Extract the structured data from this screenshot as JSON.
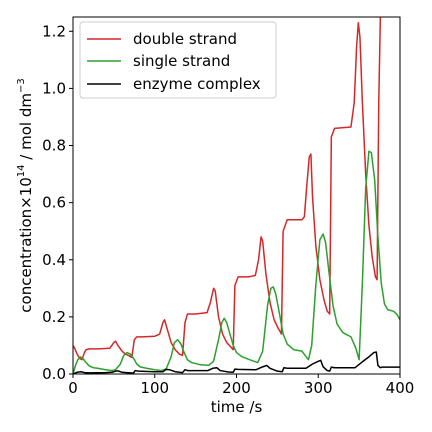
{
  "chart_data": {
    "type": "line",
    "title": "",
    "xlabel": "time /s",
    "ylabel": {
      "base": "concentration×10",
      "exponent": "14",
      "unit": " / mol dm",
      "unit_exponent": "−3"
    },
    "xlim": [
      0,
      400
    ],
    "ylim": [
      0,
      1.25
    ],
    "x_ticks": [
      0,
      100,
      200,
      300,
      400
    ],
    "y_ticks": [
      0.0,
      0.2,
      0.4,
      0.6,
      0.8,
      1.0,
      1.2
    ],
    "x_tick_labels": [
      "0",
      "100",
      "200",
      "300",
      "400"
    ],
    "y_tick_labels": [
      "0.0",
      "0.2",
      "0.4",
      "0.6",
      "0.8",
      "1.0",
      "1.2"
    ],
    "grid": false,
    "legend_position": "top-left",
    "series": [
      {
        "name": "double strand",
        "color": "#d62728",
        "points": [
          [
            0,
            0.1
          ],
          [
            2,
            0.09
          ],
          [
            5,
            0.07
          ],
          [
            8,
            0.055
          ],
          [
            11,
            0.05
          ],
          [
            14,
            0.075
          ],
          [
            16,
            0.085
          ],
          [
            20,
            0.088
          ],
          [
            30,
            0.088
          ],
          [
            45,
            0.09
          ],
          [
            50,
            0.11
          ],
          [
            52,
            0.115
          ],
          [
            55,
            0.1
          ],
          [
            60,
            0.08
          ],
          [
            64,
            0.07
          ],
          [
            68,
            0.065
          ],
          [
            72,
            0.058
          ],
          [
            75,
            0.12
          ],
          [
            78,
            0.13
          ],
          [
            85,
            0.13
          ],
          [
            100,
            0.132
          ],
          [
            106,
            0.14
          ],
          [
            110,
            0.18
          ],
          [
            112,
            0.19
          ],
          [
            115,
            0.16
          ],
          [
            120,
            0.11
          ],
          [
            125,
            0.085
          ],
          [
            130,
            0.07
          ],
          [
            134,
            0.065
          ],
          [
            137,
            0.18
          ],
          [
            140,
            0.21
          ],
          [
            150,
            0.21
          ],
          [
            164,
            0.215
          ],
          [
            168,
            0.25
          ],
          [
            172,
            0.3
          ],
          [
            174,
            0.29
          ],
          [
            178,
            0.2
          ],
          [
            183,
            0.14
          ],
          [
            188,
            0.11
          ],
          [
            193,
            0.095
          ],
          [
            196,
            0.085
          ],
          [
            198,
            0.31
          ],
          [
            202,
            0.34
          ],
          [
            215,
            0.34
          ],
          [
            223,
            0.345
          ],
          [
            227,
            0.4
          ],
          [
            230,
            0.48
          ],
          [
            232,
            0.465
          ],
          [
            236,
            0.35
          ],
          [
            241,
            0.25
          ],
          [
            246,
            0.19
          ],
          [
            251,
            0.16
          ],
          [
            255,
            0.14
          ],
          [
            257,
            0.5
          ],
          [
            262,
            0.54
          ],
          [
            280,
            0.54
          ],
          [
            283,
            0.55
          ],
          [
            286,
            0.66
          ],
          [
            289,
            0.76
          ],
          [
            291,
            0.77
          ],
          [
            293,
            0.62
          ],
          [
            297,
            0.45
          ],
          [
            302,
            0.33
          ],
          [
            307,
            0.26
          ],
          [
            311,
            0.22
          ],
          [
            314,
            0.21
          ],
          [
            316,
            0.83
          ],
          [
            320,
            0.86
          ],
          [
            340,
            0.865
          ],
          [
            344,
            0.95
          ],
          [
            347,
            1.15
          ],
          [
            349,
            1.23
          ],
          [
            351,
            1.18
          ],
          [
            354,
            0.95
          ],
          [
            358,
            0.7
          ],
          [
            362,
            0.52
          ],
          [
            366,
            0.41
          ],
          [
            370,
            0.34
          ],
          [
            372,
            0.33
          ],
          [
            374,
            0.95
          ],
          [
            376,
            1.25
          ]
        ]
      },
      {
        "name": "single strand",
        "color": "#2ca02c",
        "points": [
          [
            0,
            0.0
          ],
          [
            3,
            0.03
          ],
          [
            6,
            0.05
          ],
          [
            9,
            0.06
          ],
          [
            12,
            0.055
          ],
          [
            16,
            0.04
          ],
          [
            20,
            0.028
          ],
          [
            25,
            0.022
          ],
          [
            30,
            0.02
          ],
          [
            40,
            0.015
          ],
          [
            48,
            0.012
          ],
          [
            52,
            0.015
          ],
          [
            58,
            0.035
          ],
          [
            62,
            0.065
          ],
          [
            66,
            0.075
          ],
          [
            70,
            0.07
          ],
          [
            74,
            0.055
          ],
          [
            78,
            0.035
          ],
          [
            82,
            0.025
          ],
          [
            90,
            0.02
          ],
          [
            100,
            0.015
          ],
          [
            108,
            0.012
          ],
          [
            114,
            0.018
          ],
          [
            120,
            0.06
          ],
          [
            124,
            0.11
          ],
          [
            128,
            0.12
          ],
          [
            132,
            0.105
          ],
          [
            136,
            0.075
          ],
          [
            140,
            0.05
          ],
          [
            145,
            0.04
          ],
          [
            155,
            0.033
          ],
          [
            166,
            0.03
          ],
          [
            172,
            0.045
          ],
          [
            178,
            0.12
          ],
          [
            182,
            0.18
          ],
          [
            185,
            0.195
          ],
          [
            188,
            0.18
          ],
          [
            192,
            0.14
          ],
          [
            196,
            0.1
          ],
          [
            200,
            0.075
          ],
          [
            207,
            0.06
          ],
          [
            216,
            0.05
          ],
          [
            226,
            0.04
          ],
          [
            232,
            0.08
          ],
          [
            238,
            0.24
          ],
          [
            242,
            0.3
          ],
          [
            245,
            0.305
          ],
          [
            248,
            0.28
          ],
          [
            252,
            0.22
          ],
          [
            257,
            0.14
          ],
          [
            262,
            0.105
          ],
          [
            270,
            0.085
          ],
          [
            280,
            0.08
          ],
          [
            288,
            0.05
          ],
          [
            292,
            0.1
          ],
          [
            297,
            0.31
          ],
          [
            302,
            0.47
          ],
          [
            306,
            0.49
          ],
          [
            309,
            0.46
          ],
          [
            313,
            0.36
          ],
          [
            318,
            0.24
          ],
          [
            323,
            0.175
          ],
          [
            330,
            0.145
          ],
          [
            340,
            0.13
          ],
          [
            346,
            0.09
          ],
          [
            350,
            0.05
          ],
          [
            354,
            0.32
          ],
          [
            358,
            0.65
          ],
          [
            362,
            0.78
          ],
          [
            365,
            0.775
          ],
          [
            369,
            0.68
          ],
          [
            373,
            0.48
          ],
          [
            377,
            0.32
          ],
          [
            381,
            0.245
          ],
          [
            385,
            0.225
          ],
          [
            392,
            0.22
          ],
          [
            396,
            0.21
          ],
          [
            400,
            0.19
          ]
        ]
      },
      {
        "name": "enzyme complex",
        "color": "#000000",
        "points": [
          [
            0,
            0.0
          ],
          [
            5,
            0.006
          ],
          [
            10,
            0.008
          ],
          [
            14,
            0.005
          ],
          [
            20,
            0.004
          ],
          [
            40,
            0.005
          ],
          [
            48,
            0.006
          ],
          [
            52,
            0.01
          ],
          [
            55,
            0.011
          ],
          [
            60,
            0.006
          ],
          [
            70,
            0.004
          ],
          [
            74,
            0.003
          ],
          [
            76,
            0.012
          ],
          [
            80,
            0.01
          ],
          [
            100,
            0.008
          ],
          [
            110,
            0.008
          ],
          [
            114,
            0.016
          ],
          [
            118,
            0.015
          ],
          [
            125,
            0.008
          ],
          [
            134,
            0.005
          ],
          [
            137,
            0.015
          ],
          [
            140,
            0.012
          ],
          [
            165,
            0.012
          ],
          [
            171,
            0.02
          ],
          [
            176,
            0.022
          ],
          [
            180,
            0.012
          ],
          [
            190,
            0.007
          ],
          [
            196,
            0.006
          ],
          [
            198,
            0.017
          ],
          [
            202,
            0.016
          ],
          [
            224,
            0.015
          ],
          [
            232,
            0.025
          ],
          [
            237,
            0.03
          ],
          [
            241,
            0.02
          ],
          [
            250,
            0.01
          ],
          [
            256,
            0.008
          ],
          [
            258,
            0.022
          ],
          [
            262,
            0.02
          ],
          [
            285,
            0.02
          ],
          [
            293,
            0.035
          ],
          [
            299,
            0.043
          ],
          [
            303,
            0.048
          ],
          [
            306,
            0.025
          ],
          [
            311,
            0.012
          ],
          [
            314,
            0.01
          ],
          [
            316,
            0.024
          ],
          [
            320,
            0.022
          ],
          [
            345,
            0.022
          ],
          [
            355,
            0.045
          ],
          [
            362,
            0.06
          ],
          [
            368,
            0.075
          ],
          [
            371,
            0.077
          ],
          [
            373,
            0.03
          ],
          [
            376,
            0.022
          ],
          [
            378,
            0.024
          ],
          [
            400,
            0.024
          ]
        ]
      }
    ]
  }
}
